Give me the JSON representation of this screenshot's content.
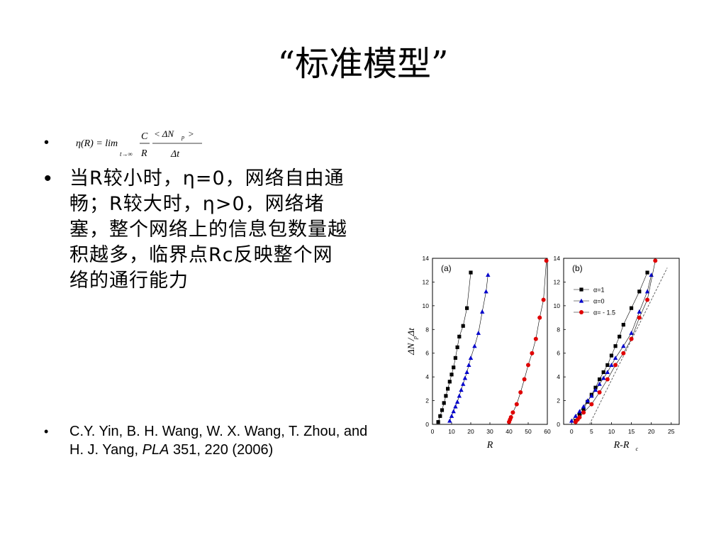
{
  "title": "“标准模型”",
  "bullets": {
    "glyph": "•",
    "formula": {
      "lhs": "η(R) = lim",
      "limit_sub": "t→∞",
      "frac1_num": "C",
      "frac1_den": "R",
      "frac2_num": "< ΔN",
      "frac2_num_sub": "p",
      "frac2_num_end": ">",
      "frac2_den": "Δt"
    },
    "description": "当R较小时，η=0，网络自由通畅；R较大时，η>0，网络堵塞，整个网络上的信息包数量越积越多，临界点Rc反映整个网络的通行能力",
    "citation": {
      "authors": "C.Y. Yin, B. H. Wang, W. X. Wang, T. Zhou, and H. J. Yang, ",
      "journal": "PLA",
      "details": " 351, 220 (2006)"
    }
  },
  "chart_data": [
    {
      "type": "scatter",
      "panel_label": "(a)",
      "xlabel": "R",
      "ylabel": "ΔN / Δt",
      "ylabel_sub": "p",
      "xlim": [
        0,
        60
      ],
      "ylim": [
        0,
        14
      ],
      "xticks": [
        0,
        10,
        20,
        30,
        40,
        50,
        60
      ],
      "yticks": [
        0,
        2,
        4,
        6,
        8,
        10,
        12,
        14
      ],
      "series": [
        {
          "marker": "square",
          "color": "#000000",
          "x": [
            3,
            4,
            5,
            6,
            7,
            8,
            9,
            10,
            11,
            12,
            13,
            14,
            16,
            18,
            20
          ],
          "y": [
            0.2,
            0.7,
            1.2,
            1.8,
            2.4,
            3.0,
            3.6,
            4.2,
            4.8,
            5.6,
            6.5,
            7.4,
            8.3,
            9.8,
            12.8
          ]
        },
        {
          "marker": "triangle",
          "color": "#0000cc",
          "x": [
            9,
            10,
            11,
            12,
            13,
            14,
            15,
            16,
            17,
            18,
            19,
            20,
            22,
            24,
            26,
            28,
            29
          ],
          "y": [
            0.3,
            0.7,
            1.1,
            1.5,
            1.9,
            2.4,
            2.9,
            3.4,
            3.9,
            4.4,
            5.0,
            5.6,
            6.6,
            7.7,
            9.5,
            11.2,
            12.6
          ]
        },
        {
          "marker": "circle",
          "color": "#e00000",
          "x": [
            40,
            40.5,
            41,
            42,
            44,
            46,
            48,
            50,
            52,
            54,
            56,
            58,
            59.5
          ],
          "y": [
            0.2,
            0.4,
            0.6,
            1.0,
            1.7,
            2.7,
            3.8,
            5.0,
            6.0,
            7.2,
            9.0,
            10.5,
            13.8
          ]
        }
      ]
    },
    {
      "type": "scatter",
      "panel_label": "(b)",
      "xlabel": "R-R",
      "xlabel_sub": "c",
      "xlim": [
        -2,
        27
      ],
      "ylim": [
        0,
        14
      ],
      "xticks": [
        0,
        5,
        10,
        15,
        20,
        25
      ],
      "yticks": [
        0,
        2,
        4,
        6,
        8,
        10,
        12,
        14
      ],
      "legend": [
        {
          "label": "α=1",
          "marker": "square",
          "color": "#000000"
        },
        {
          "label": "α=0",
          "marker": "triangle",
          "color": "#0000cc"
        },
        {
          "label": "α= - 1.5",
          "marker": "circle",
          "color": "#e00000"
        }
      ],
      "series": [
        {
          "marker": "square",
          "color": "#000000",
          "x": [
            1,
            2,
            3,
            4,
            5,
            6,
            7,
            8,
            9,
            10,
            11,
            12,
            13,
            15,
            17,
            19
          ],
          "y": [
            0.3,
            0.8,
            1.3,
            1.9,
            2.5,
            3.1,
            3.8,
            4.4,
            5.0,
            5.8,
            6.6,
            7.4,
            8.4,
            9.8,
            11.2,
            12.8
          ]
        },
        {
          "marker": "triangle",
          "color": "#0000cc",
          "x": [
            0,
            1,
            2,
            3,
            4,
            5,
            6,
            7,
            8,
            9,
            10,
            11,
            13,
            15,
            17,
            19,
            20
          ],
          "y": [
            0.3,
            0.7,
            1.1,
            1.5,
            2.0,
            2.4,
            2.9,
            3.4,
            3.9,
            4.4,
            5.0,
            5.6,
            6.6,
            7.7,
            9.5,
            11.2,
            12.6
          ]
        },
        {
          "marker": "circle",
          "color": "#e00000",
          "x": [
            1,
            1.5,
            2,
            3,
            5,
            7,
            9,
            11,
            13,
            15,
            17,
            19,
            21
          ],
          "y": [
            0.2,
            0.4,
            0.6,
            1.0,
            1.7,
            2.7,
            3.8,
            5.0,
            6.0,
            7.2,
            9.0,
            10.5,
            13.8
          ]
        }
      ],
      "reference_line": {
        "style": "dashed",
        "color": "#555555",
        "x": [
          4.5,
          24
        ],
        "y": [
          0,
          13.2
        ]
      }
    }
  ]
}
